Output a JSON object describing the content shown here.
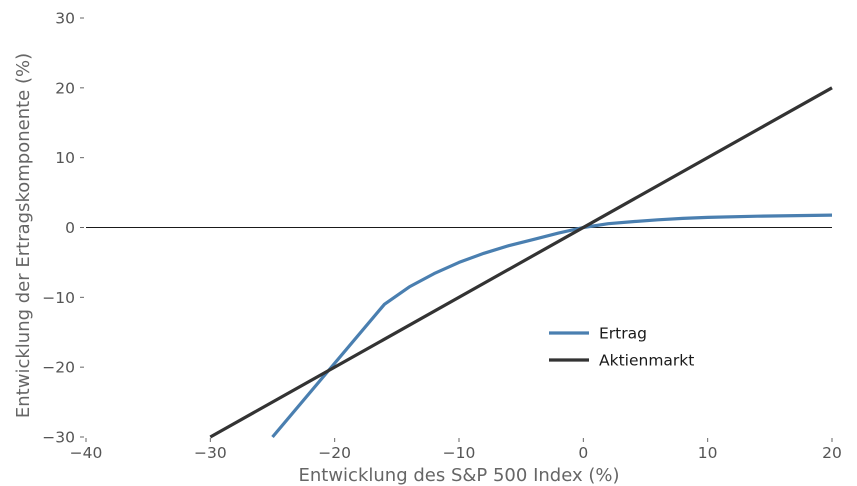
{
  "chart_data": {
    "type": "line",
    "title": "",
    "xlabel": "Entwicklung des S&P 500 Index (%)",
    "ylabel": "Entwicklung der Ertragskomponente (%)",
    "xlim": [
      -40,
      20
    ],
    "ylim": [
      -30,
      30
    ],
    "xticks": [
      -40,
      -30,
      -20,
      -10,
      0,
      10,
      20
    ],
    "yticks": [
      -30,
      -20,
      -10,
      0,
      10,
      20,
      30
    ],
    "xtick_labels": [
      "−40",
      "−30",
      "−20",
      "−10",
      "0",
      "10",
      "20"
    ],
    "ytick_labels": [
      "−30",
      "−20",
      "−10",
      "0",
      "10",
      "20",
      "30"
    ],
    "grid": false,
    "zero_line": true,
    "legend_position": "lower-right",
    "series": [
      {
        "name": "Ertrag",
        "color": "#4a7fb0",
        "x": [
          -25,
          -16,
          -14,
          -12,
          -10,
          -8,
          -6,
          -4,
          -2,
          0,
          2,
          4,
          6,
          8,
          10,
          14,
          20
        ],
        "y": [
          -30,
          -11,
          -8.5,
          -6.6,
          -5.0,
          -3.7,
          -2.6,
          -1.7,
          -0.8,
          0,
          0.55,
          0.85,
          1.1,
          1.3,
          1.45,
          1.62,
          1.78
        ]
      },
      {
        "name": "Aktienmarkt",
        "color": "#333333",
        "x": [
          -30,
          20
        ],
        "y": [
          -30,
          20
        ]
      }
    ]
  }
}
